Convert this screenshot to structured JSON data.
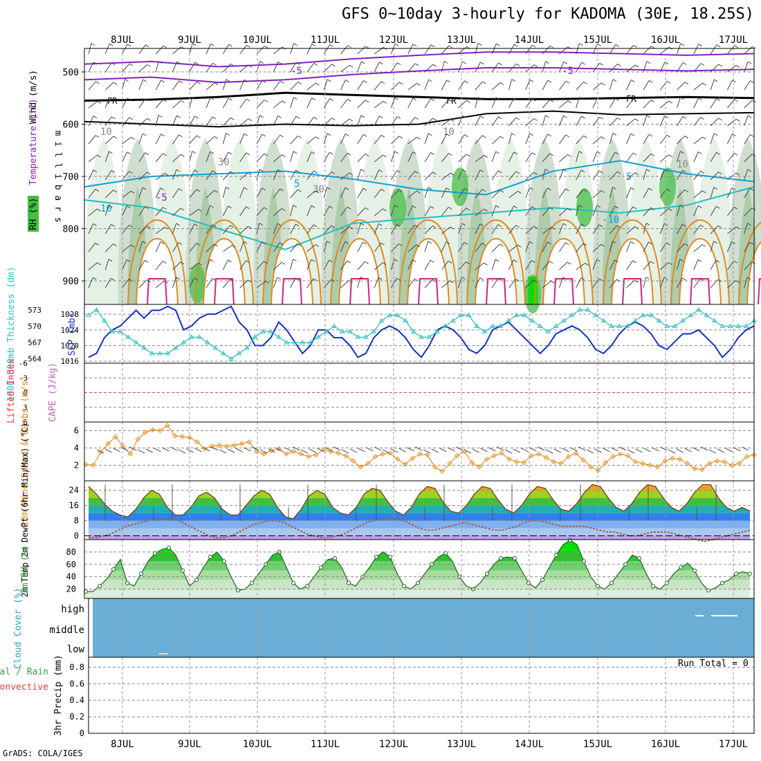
{
  "title": "GFS 0~10day 3-hourly for KADOMA (30E, 18.25S)",
  "credit": "GrADS: COLA/IGES",
  "run_total": "Run Total = 0",
  "dates": [
    "8JUL",
    "9JUL",
    "10JUL",
    "11JUL",
    "12JUL",
    "13JUL",
    "14JUL",
    "15JUL",
    "16JUL",
    "17JUL"
  ],
  "chart_data": [
    {
      "type": "heatmap",
      "panel": "upper-air",
      "ylabel": "millibars",
      "legend_labels": [
        "Wind (m/s)",
        "Temperature (°C)",
        "RH (%)"
      ],
      "yticks": [
        500,
        600,
        700,
        800,
        900
      ],
      "contour_labels": [
        "-5",
        "-5",
        "FR",
        "FR",
        "FR",
        "10",
        "10",
        "10",
        "30",
        "30",
        "-5",
        "5",
        "5",
        "10",
        "-10"
      ],
      "freezing_level_mb": [
        555,
        553,
        548,
        540,
        544,
        548,
        552,
        552,
        550,
        548,
        550
      ],
      "minus5_level_mb": [
        515,
        510,
        520,
        515,
        505,
        498,
        492,
        492,
        495,
        498,
        495
      ],
      "plus5_level_mb": [
        720,
        700,
        695,
        690,
        705,
        725,
        735,
        690,
        670,
        695,
        710
      ]
    },
    {
      "type": "line",
      "panel": "slp-thickness",
      "ylabel_left": "1000-500mb Thickness (dm)",
      "ylabel_right": "SLP (mb)",
      "thickness_ticks": [
        564,
        567,
        570,
        573
      ],
      "slp_ticks": [
        1016,
        1020,
        1024,
        1028
      ],
      "series": [
        {
          "name": "SLP (mb)",
          "color": "#1030c8",
          "values": [
            1017,
            1018,
            1022,
            1024,
            1025,
            1027,
            1029,
            1027,
            1029,
            1029,
            1030,
            1029,
            1024,
            1025,
            1027,
            1028,
            1028,
            1029,
            1030,
            1026,
            1024,
            1020,
            1020,
            1022,
            1026,
            1024,
            1021,
            1018,
            1020,
            1024,
            1024,
            1022,
            1022,
            1020,
            1017,
            1018,
            1022,
            1024,
            1025,
            1024,
            1022,
            1019,
            1017,
            1020,
            1024,
            1025,
            1024,
            1022,
            1019,
            1018,
            1020,
            1024,
            1025,
            1026,
            1024,
            1022,
            1020,
            1018,
            1020,
            1023,
            1024,
            1025,
            1024,
            1022,
            1019,
            1018,
            1020,
            1023,
            1025,
            1026,
            1025,
            1023,
            1020,
            1019,
            1021,
            1023,
            1023,
            1024,
            1022,
            1020,
            1017,
            1019,
            1022,
            1024,
            1025
          ]
        },
        {
          "name": "Thickness (dm)",
          "color": "#30c0c0",
          "values": [
            572,
            573,
            571,
            569,
            569,
            568,
            567,
            566,
            565,
            565,
            565,
            566,
            567,
            568,
            568,
            567,
            566,
            565,
            564,
            565,
            566,
            568,
            569,
            569,
            568,
            567,
            567,
            567,
            567,
            568,
            569,
            570,
            569,
            569,
            568,
            568,
            569,
            571,
            572,
            572,
            571,
            569,
            568,
            568,
            569,
            570,
            571,
            572,
            572,
            570,
            569,
            570,
            570,
            571,
            572,
            572,
            571,
            570,
            569,
            570,
            571,
            572,
            573,
            573,
            572,
            571,
            570,
            570,
            570,
            571,
            572,
            572,
            571,
            570,
            570,
            571,
            572,
            573,
            572,
            571,
            570,
            570,
            570,
            570,
            571
          ]
        }
      ]
    },
    {
      "type": "line",
      "panel": "cape-li",
      "ylabel_left": "Lifted Index",
      "ylabel_right": "CAPE (J/kg)",
      "li_ticks": [
        "-6",
        "-3",
        "0",
        "3",
        "6"
      ],
      "series": [
        {
          "name": "Lifted Index",
          "values": []
        },
        {
          "name": "CAPE",
          "values": []
        }
      ]
    },
    {
      "type": "line",
      "panel": "wind10m",
      "ylabel": "10m Wind Speed & Barbs (m/s)",
      "yticks": [
        2,
        4,
        6
      ],
      "series": [
        {
          "name": "10m Wind Speed",
          "color": "#e89020",
          "values": [
            2.1,
            2.0,
            3.5,
            4.5,
            5.3,
            4.2,
            3.3,
            5.0,
            5.8,
            6.1,
            6.0,
            6.6,
            5.4,
            5.3,
            5.2,
            4.7,
            3.9,
            4.2,
            4.3,
            4.2,
            4.3,
            4.5,
            4.7,
            3.6,
            3.3,
            3.7,
            3.9,
            3.3,
            3.6,
            3.3,
            3.0,
            3.2,
            3.8,
            3.6,
            3.4,
            3.1,
            2.5,
            1.8,
            2.2,
            3.0,
            3.3,
            3.4,
            2.7,
            2.1,
            2.8,
            3.3,
            3.2,
            1.8,
            1.3,
            2.2,
            3.1,
            3.6,
            2.3,
            1.8,
            2.7,
            3.1,
            3.4,
            2.7,
            2.4,
            2.3,
            3.1,
            3.3,
            2.9,
            2.4,
            2.2,
            3.0,
            3.4,
            2.6,
            1.8,
            1.4,
            2.3,
            3.0,
            3.3,
            3.1,
            2.4,
            2.2,
            2.0,
            1.8,
            2.5,
            2.8,
            2.7,
            2.2,
            1.6,
            1.5,
            2.2,
            2.5,
            2.4,
            2.0,
            2.2,
            3.0,
            3.2
          ]
        }
      ]
    },
    {
      "type": "area",
      "panel": "temperature",
      "ylabel": "2m Temp 2m DewPt (6hr Min/Max) (°C)",
      "yticks": [
        0,
        8,
        16,
        24
      ],
      "series": [
        {
          "name": "2m Temp",
          "values": [
            26,
            22,
            17,
            13,
            11,
            10,
            14,
            20,
            24,
            22,
            15,
            11,
            11,
            15,
            21,
            23,
            20,
            14,
            11,
            11,
            16,
            21,
            24,
            22,
            15,
            10,
            9,
            14,
            21,
            24,
            22,
            15,
            12,
            11,
            15,
            22,
            25,
            24,
            18,
            13,
            11,
            15,
            22,
            26,
            25,
            18,
            13,
            12,
            16,
            22,
            26,
            25,
            19,
            14,
            12,
            16,
            22,
            26,
            25,
            19,
            14,
            13,
            17,
            23,
            27,
            26,
            20,
            15,
            13,
            17,
            23,
            27,
            26,
            20,
            15,
            13,
            17,
            23,
            27,
            27,
            20,
            15,
            13,
            15,
            13
          ]
        },
        {
          "name": "2m DewPt",
          "values": [
            -1,
            -1,
            0,
            1,
            3,
            5,
            6,
            7,
            8,
            9,
            9,
            9,
            8,
            6,
            4,
            2,
            0,
            -1,
            -1,
            0,
            2,
            4,
            6,
            7,
            8,
            8,
            7,
            5,
            3,
            1,
            0,
            -1,
            -1,
            0,
            1,
            3,
            5,
            7,
            8,
            9,
            10,
            9,
            8,
            6,
            4,
            3,
            3,
            4,
            5,
            6,
            7,
            6,
            5,
            4,
            3,
            3,
            4,
            5,
            7,
            8,
            8,
            7,
            6,
            5,
            5,
            5,
            5,
            4,
            3,
            2,
            2,
            1,
            0,
            0,
            1,
            2,
            2,
            2,
            1,
            0,
            -1,
            -2,
            -3,
            -2,
            -1,
            0,
            1,
            2,
            3
          ]
        }
      ]
    },
    {
      "type": "area",
      "panel": "rh2m",
      "ylabel": "2m RH (%)",
      "yticks": [
        20,
        40,
        60,
        80
      ],
      "series": [
        {
          "name": "2m RH",
          "values": [
            16,
            16,
            25,
            36,
            52,
            68,
            30,
            25,
            45,
            65,
            78,
            84,
            87,
            75,
            50,
            25,
            35,
            55,
            72,
            80,
            65,
            40,
            18,
            20,
            30,
            45,
            60,
            75,
            80,
            55,
            30,
            20,
            25,
            40,
            55,
            68,
            70,
            55,
            30,
            25,
            40,
            55,
            72,
            80,
            72,
            45,
            25,
            20,
            30,
            45,
            60,
            72,
            78,
            65,
            40,
            25,
            20,
            30,
            45,
            60,
            70,
            72,
            70,
            50,
            30,
            22,
            35,
            55,
            75,
            92,
            99,
            92,
            65,
            40,
            25,
            20,
            30,
            45,
            60,
            75,
            70,
            45,
            25,
            20,
            30,
            45,
            55,
            62,
            50,
            30,
            18,
            22,
            30,
            35,
            45,
            48,
            45
          ]
        }
      ]
    },
    {
      "type": "heatmap",
      "panel": "cloud",
      "ylabel": "Cloud Cover (%)",
      "levels": [
        "high",
        "middle",
        "low"
      ]
    },
    {
      "type": "bar",
      "panel": "precip",
      "ylabel": "3hr Precip (mm)",
      "legend_labels": [
        "Total / Rain",
        "Convective"
      ],
      "yticks": [
        0,
        0.2,
        0.4,
        0.6,
        0.8
      ],
      "values": []
    }
  ],
  "colors": {
    "slp": "#1030c8",
    "thickness": "#30c0c0",
    "wind_speed": "#e89020",
    "rh_green": "#40c040",
    "cloud": "#6aaed6",
    "purple": "#8020c0",
    "cyan": "#10a0d8",
    "orange": "#e08a20",
    "magenta": "#d0207a"
  }
}
